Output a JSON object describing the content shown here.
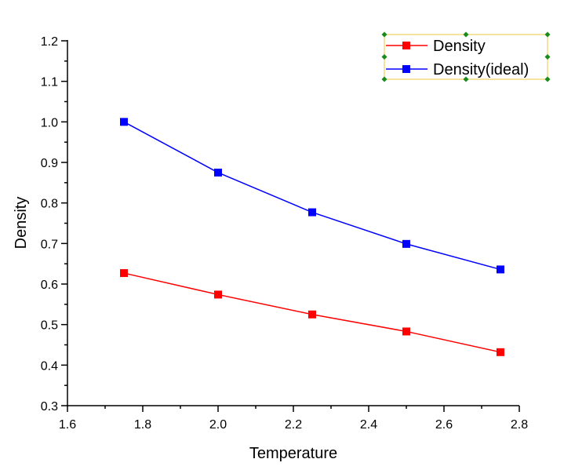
{
  "chart_data": {
    "type": "line",
    "title": "",
    "xlabel": "Temperature",
    "ylabel": "Density",
    "xlim": [
      1.6,
      2.8
    ],
    "ylim": [
      0.3,
      1.2
    ],
    "xticks": [
      1.6,
      1.8,
      2.0,
      2.2,
      2.4,
      2.6,
      2.8
    ],
    "xtick_labels": [
      "1.6",
      "1.8",
      "2.0",
      "2.2",
      "2.4",
      "2.6",
      "2.8"
    ],
    "yticks": [
      0.3,
      0.4,
      0.5,
      0.6,
      0.7,
      0.8,
      0.9,
      1.0,
      1.1,
      1.2
    ],
    "ytick_labels": [
      "0.3",
      "0.4",
      "0.5",
      "0.6",
      "0.7",
      "0.8",
      "0.9",
      "1.0",
      "1.1",
      "1.2"
    ],
    "grid": false,
    "legend_position": "top-right",
    "x": [
      1.75,
      2.0,
      2.25,
      2.5,
      2.75
    ],
    "series": [
      {
        "name": "Density",
        "color": "#ff0000",
        "marker": "square",
        "values": [
          0.627,
          0.574,
          0.525,
          0.483,
          0.432
        ]
      },
      {
        "name": "Density(ideal)",
        "color": "#0000ff",
        "marker": "square",
        "values": [
          1.0,
          0.875,
          0.777,
          0.699,
          0.636
        ]
      }
    ],
    "legend_selected": true,
    "legend_border_color": "#f0d060",
    "selection_handle_color": "#1a8a1a"
  }
}
